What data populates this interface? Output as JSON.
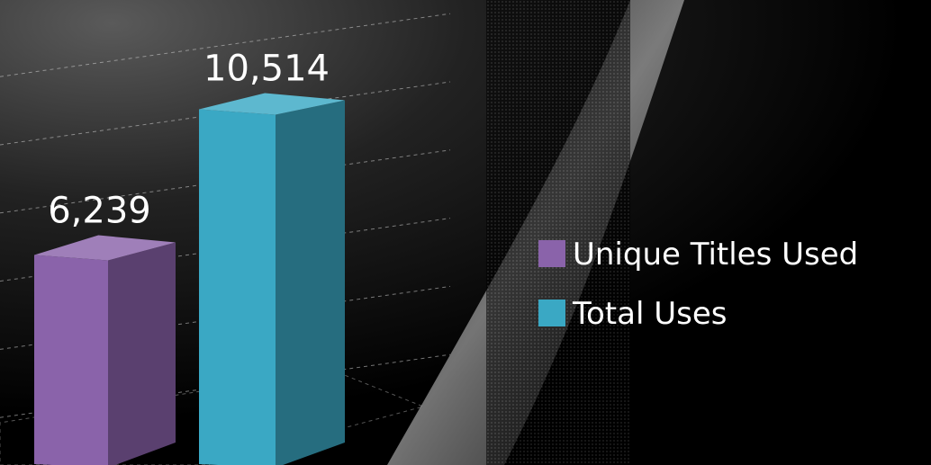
{
  "chart_data": {
    "type": "bar",
    "categories": [
      "Unique Titles Used",
      "Total Uses"
    ],
    "values": [
      6239,
      10514
    ],
    "data_labels": [
      "6,239",
      "10,514"
    ],
    "colors": [
      "#8a63aa",
      "#3aa8c4"
    ],
    "title": "",
    "xlabel": "",
    "ylabel": "",
    "ylim": [
      0,
      12000
    ],
    "grid": true,
    "legend": "right",
    "style": "3d-column"
  }
}
